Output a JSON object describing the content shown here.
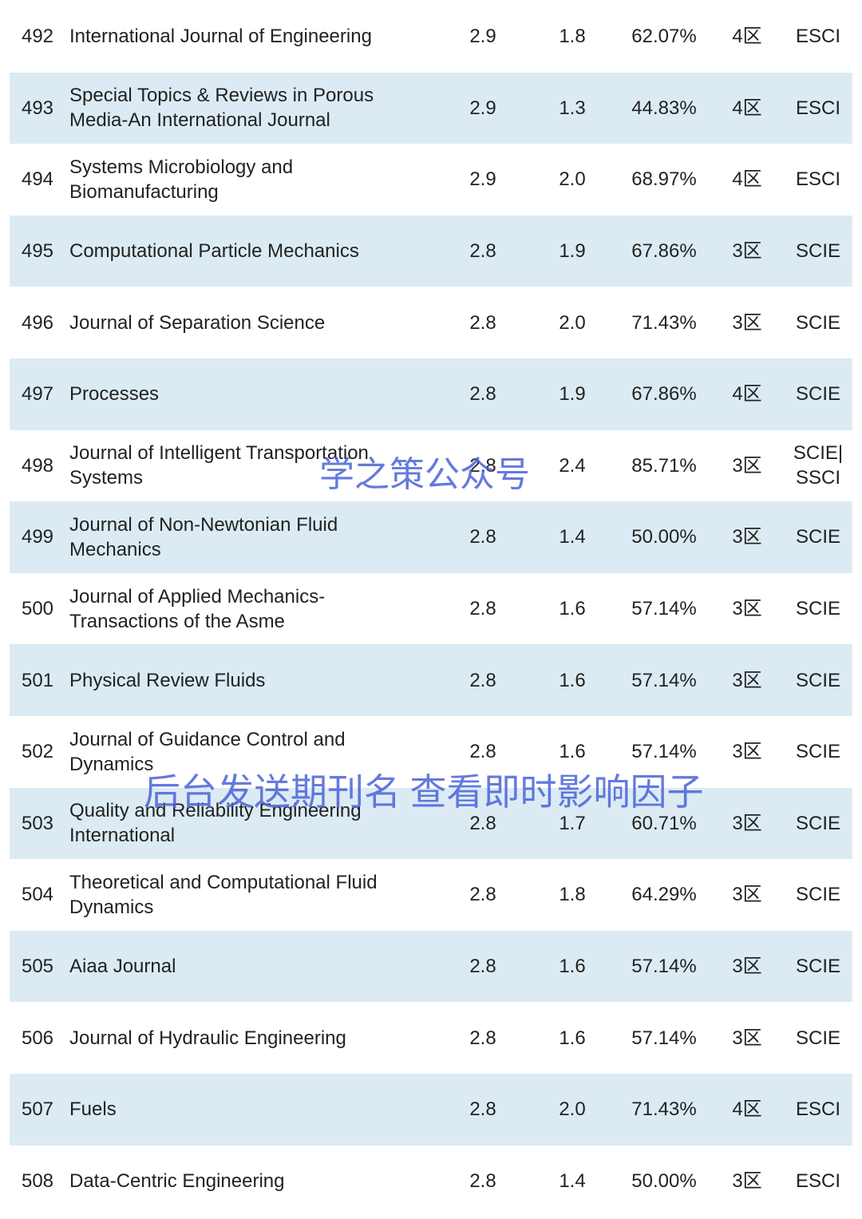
{
  "table": {
    "rows": [
      [
        "492",
        [
          "International Journal of Engineering"
        ],
        "2.9",
        "1.8",
        "62.07%",
        "4区",
        [
          "ESCI"
        ]
      ],
      [
        "493",
        [
          "Special Topics & Reviews in Porous",
          "Media-An International Journal"
        ],
        "2.9",
        "1.3",
        "44.83%",
        "4区",
        [
          "ESCI"
        ]
      ],
      [
        "494",
        [
          "Systems Microbiology and",
          "Biomanufacturing"
        ],
        "2.9",
        "2.0",
        "68.97%",
        "4区",
        [
          "ESCI"
        ]
      ],
      [
        "495",
        [
          "Computational Particle Mechanics"
        ],
        "2.8",
        "1.9",
        "67.86%",
        "3区",
        [
          "SCIE"
        ]
      ],
      [
        "496",
        [
          "Journal of Separation Science"
        ],
        "2.8",
        "2.0",
        "71.43%",
        "3区",
        [
          "SCIE"
        ]
      ],
      [
        "497",
        [
          "Processes"
        ],
        "2.8",
        "1.9",
        "67.86%",
        "4区",
        [
          "SCIE"
        ]
      ],
      [
        "498",
        [
          "Journal of Intelligent Transportation",
          "Systems"
        ],
        "2.8",
        "2.4",
        "85.71%",
        "3区",
        [
          "SCIE|",
          "SSCI"
        ]
      ],
      [
        "499",
        [
          "Journal of Non-Newtonian Fluid",
          "Mechanics"
        ],
        "2.8",
        "1.4",
        "50.00%",
        "3区",
        [
          "SCIE"
        ]
      ],
      [
        "500",
        [
          "Journal of Applied Mechanics-",
          "Transactions of the Asme"
        ],
        "2.8",
        "1.6",
        "57.14%",
        "3区",
        [
          "SCIE"
        ]
      ],
      [
        "501",
        [
          "Physical Review Fluids"
        ],
        "2.8",
        "1.6",
        "57.14%",
        "3区",
        [
          "SCIE"
        ]
      ],
      [
        "502",
        [
          "Journal of Guidance Control and",
          "Dynamics"
        ],
        "2.8",
        "1.6",
        "57.14%",
        "3区",
        [
          "SCIE"
        ]
      ],
      [
        "503",
        [
          "Quality and Reliability Engineering",
          "International"
        ],
        "2.8",
        "1.7",
        "60.71%",
        "3区",
        [
          "SCIE"
        ]
      ],
      [
        "504",
        [
          "Theoretical and Computational Fluid",
          "Dynamics"
        ],
        "2.8",
        "1.8",
        "64.29%",
        "3区",
        [
          "SCIE"
        ]
      ],
      [
        "505",
        [
          "Aiaa Journal"
        ],
        "2.8",
        "1.6",
        "57.14%",
        "3区",
        [
          "SCIE"
        ]
      ],
      [
        "506",
        [
          "Journal of Hydraulic Engineering"
        ],
        "2.8",
        "1.6",
        "57.14%",
        "3区",
        [
          "SCIE"
        ]
      ],
      [
        "507",
        [
          "Fuels"
        ],
        "2.8",
        "2.0",
        "71.43%",
        "4区",
        [
          "ESCI"
        ]
      ],
      [
        "508",
        [
          "Data-Centric Engineering"
        ],
        "2.8",
        "1.4",
        "50.00%",
        "3区",
        [
          "ESCI"
        ]
      ]
    ]
  },
  "watermark": [
    "学之策公众号",
    "后台发送期刊名 查看即时影响因子"
  ]
}
